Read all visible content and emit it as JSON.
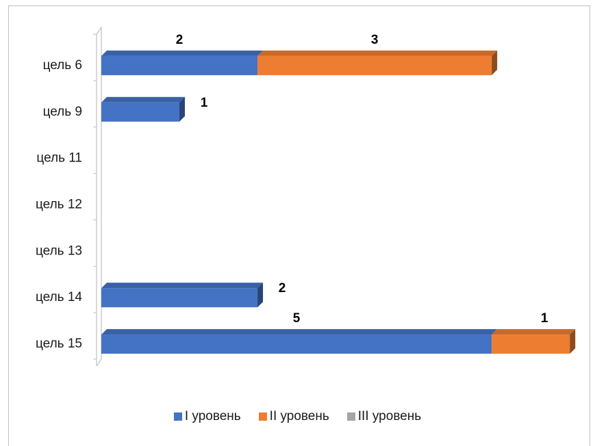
{
  "chart_data": {
    "type": "bar",
    "orientation": "horizontal",
    "stacked": true,
    "style": "3d",
    "categories": [
      "цель 6",
      "цель 9",
      "цель 11",
      "цель 12",
      "цель 13",
      "цель 14",
      "цель 15"
    ],
    "series": [
      {
        "name": "I уровень",
        "color": "#4472C4",
        "values": [
          2,
          1,
          0,
          0,
          0,
          2,
          5
        ]
      },
      {
        "name": "II уровень",
        "color": "#ED7D31",
        "values": [
          3,
          0,
          0,
          0,
          0,
          0,
          1
        ]
      },
      {
        "name": "III уровень",
        "color": "#A5A5A5",
        "values": [
          0,
          0,
          0,
          0,
          0,
          0,
          0
        ]
      }
    ],
    "xlim": [
      0,
      6
    ],
    "title": "",
    "xlabel": "",
    "ylabel": "",
    "legend_position": "bottom",
    "grid": false,
    "data_labels": true
  }
}
